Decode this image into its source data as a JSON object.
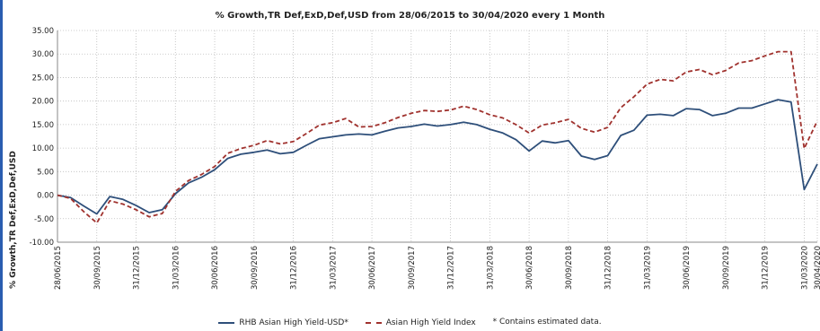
{
  "chart_data": {
    "type": "line",
    "title": "% Growth,TR Def,ExD,Def,USD from 28/06/2015 to 30/04/2020 every 1 Month",
    "xlabel": "",
    "ylabel": "% Growth,TR Def,ExD,Def,USD",
    "ylim": [
      -10,
      35
    ],
    "yticks": [
      "35.00",
      "30.00",
      "25.00",
      "20.00",
      "15.00",
      "10.00",
      "5.00",
      "0.00",
      "-5.00",
      "-10.00"
    ],
    "xticks": [
      "28/06/2015",
      "30/09/2015",
      "31/12/2015",
      "31/03/2016",
      "30/06/2016",
      "30/09/2016",
      "31/12/2016",
      "31/03/2017",
      "30/06/2017",
      "30/09/2017",
      "31/12/2017",
      "31/03/2018",
      "30/06/2018",
      "30/09/2018",
      "31/12/2018",
      "31/03/2019",
      "30/06/2019",
      "30/09/2019",
      "31/12/2019",
      "31/03/2020",
      "30/04/2020"
    ],
    "grid": true,
    "legend_position": "bottom",
    "footnote": "*  Contains estimated data.",
    "series": [
      {
        "name": "RHB Asian High Yield-USD*",
        "color": "#2e4f7a",
        "style": "solid",
        "values": [
          0.0,
          -0.5,
          -2.3,
          -4.0,
          -0.3,
          -0.9,
          -2.2,
          -3.7,
          -3.1,
          0.3,
          2.6,
          3.8,
          5.4,
          7.8,
          8.7,
          9.1,
          9.6,
          8.8,
          9.1,
          10.6,
          12.0,
          12.4,
          12.8,
          13.0,
          12.8,
          13.6,
          14.3,
          14.6,
          15.1,
          14.7,
          15.0,
          15.5,
          15.0,
          14.0,
          13.2,
          11.8,
          9.4,
          11.5,
          11.1,
          11.6,
          8.3,
          7.6,
          8.4,
          12.7,
          13.8,
          17.0,
          17.2,
          16.9,
          18.4,
          18.2,
          16.9,
          17.4,
          18.5,
          18.5,
          19.4,
          20.3,
          19.8,
          1.2,
          6.6
        ]
      },
      {
        "name": "Asian High Yield Index",
        "color": "#a0322e",
        "style": "dashed",
        "values": [
          0.0,
          -0.7,
          -3.5,
          -5.9,
          -1.2,
          -1.9,
          -3.1,
          -4.6,
          -3.9,
          0.8,
          3.1,
          4.4,
          6.1,
          8.9,
          9.9,
          10.6,
          11.6,
          10.9,
          11.4,
          13.1,
          14.9,
          15.4,
          16.3,
          14.5,
          14.6,
          15.4,
          16.5,
          17.4,
          18.0,
          17.8,
          18.1,
          18.9,
          18.2,
          17.1,
          16.4,
          15.0,
          13.2,
          14.9,
          15.4,
          16.1,
          14.2,
          13.4,
          14.4,
          18.6,
          20.9,
          23.6,
          24.6,
          24.3,
          26.2,
          26.7,
          25.6,
          26.5,
          28.1,
          28.6,
          29.6,
          30.5,
          30.5,
          9.9,
          15.8
        ]
      }
    ]
  }
}
